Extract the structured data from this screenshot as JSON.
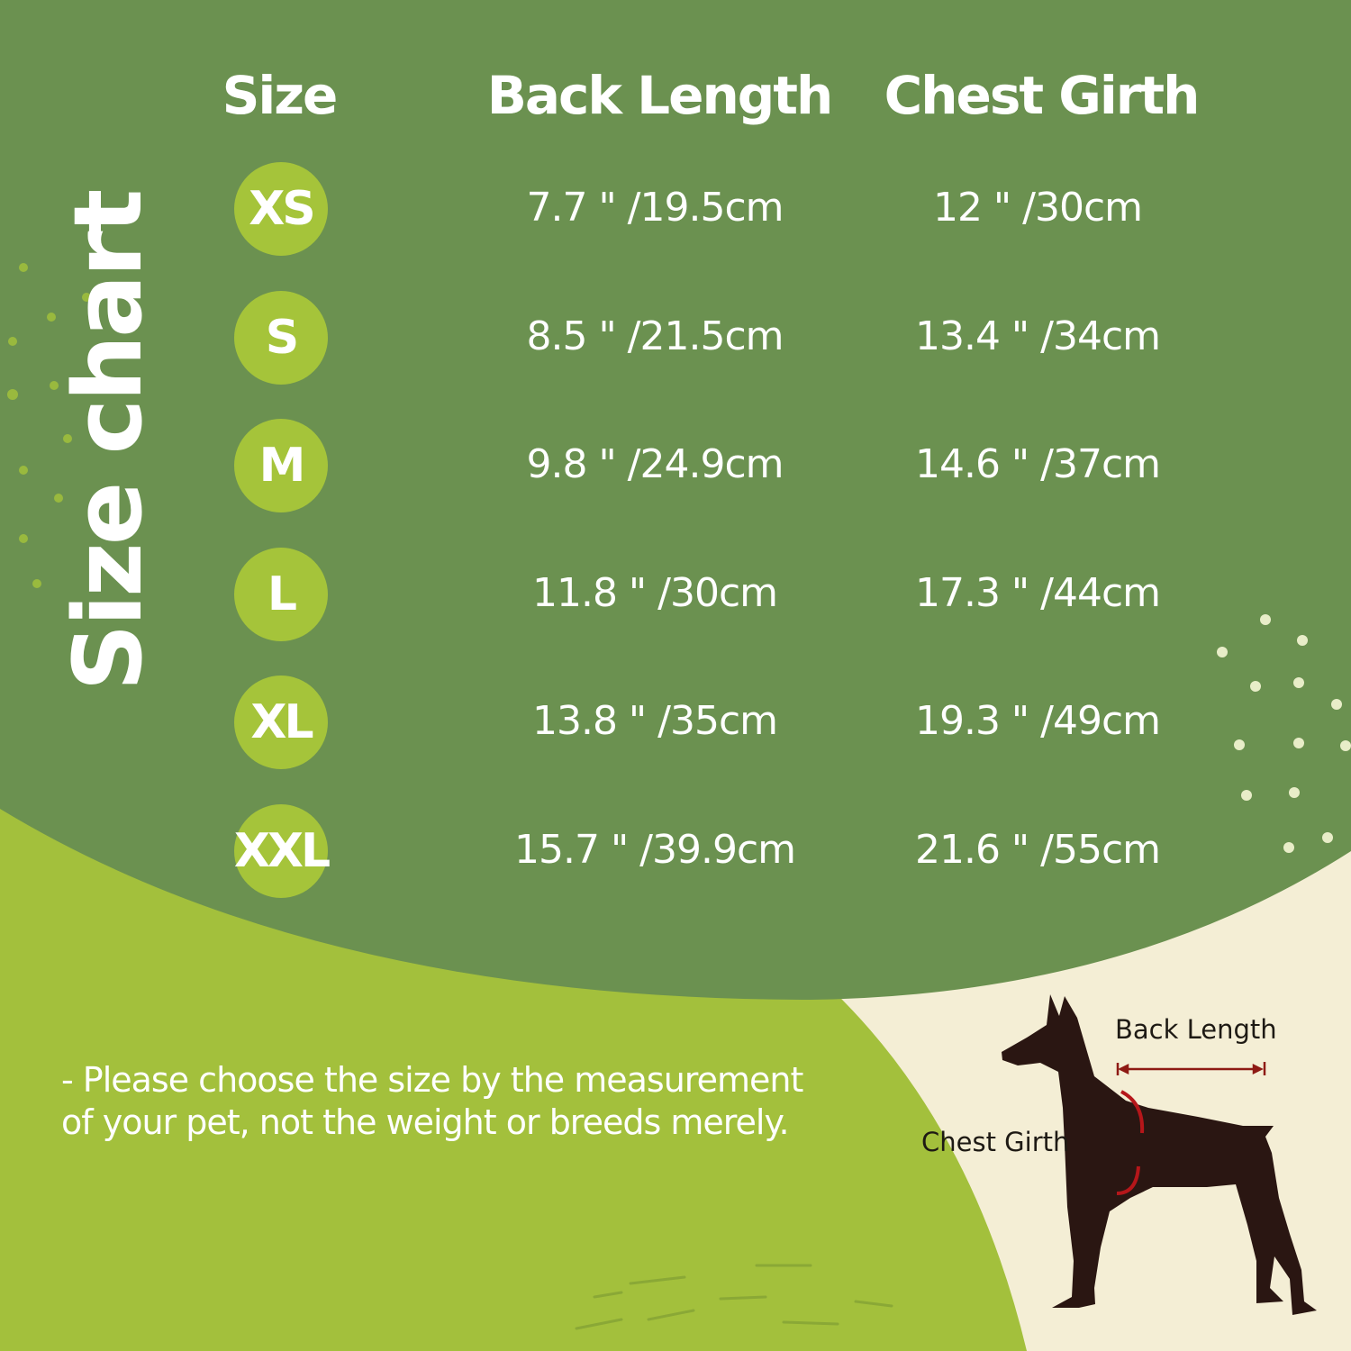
{
  "title": "Size chart",
  "headers": {
    "size": "Size",
    "back_length": "Back Length",
    "chest_girth": "Chest Girth"
  },
  "rows": [
    {
      "size": "XS",
      "back_length": "7.7 \" /19.5cm",
      "chest_girth": "12 \" /30cm"
    },
    {
      "size": "S",
      "back_length": "8.5 \" /21.5cm",
      "chest_girth": "13.4 \" /34cm"
    },
    {
      "size": "M",
      "back_length": "9.8 \" /24.9cm",
      "chest_girth": "14.6 \" /37cm"
    },
    {
      "size": "L",
      "back_length": "11.8 \" /30cm",
      "chest_girth": "17.3 \" /44cm"
    },
    {
      "size": "XL",
      "back_length": "13.8 \" /35cm",
      "chest_girth": "19.3 \" /49cm"
    },
    {
      "size": "XXL",
      "back_length": "15.7 \" /39.9cm",
      "chest_girth": "21.6 \" /55cm"
    }
  ],
  "note": [
    "- Please choose the size by the measurement",
    "of your pet, not the weight or breeds merely."
  ],
  "diagram": {
    "back_length_label": "Back Length",
    "chest_girth_label": "Chest Girth"
  },
  "colors": {
    "dark_green": "#6b9150",
    "light_green": "#a3c03c",
    "badge": "#a5c43a",
    "cream": "#f4eed5",
    "dog": "#2a1612",
    "arrow": "#a8161a"
  }
}
